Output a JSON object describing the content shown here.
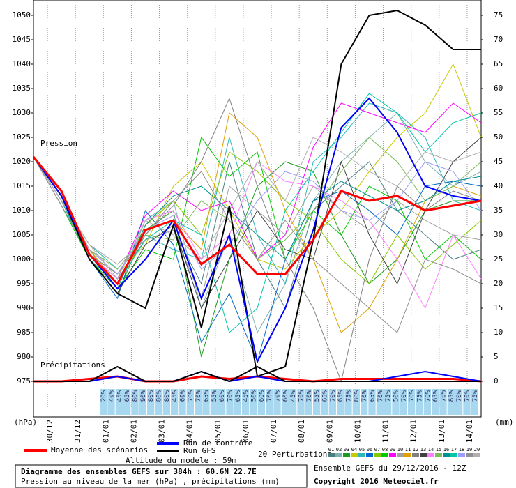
{
  "chart_data": {
    "type": "line",
    "texts": {
      "pressure": "Pression",
      "precip": "Précipitations",
      "unit_left": "(hPa)",
      "unit_right": "(mm)",
      "perturbations": "20 Perturbations",
      "altitude": "Altitude du modele : 59m",
      "title": "Diagramme des ensembles GEFS sur 384h : 60.6N 22.7E",
      "subtitle": "Pression au niveau de la mer (hPa) , précipitations (mm)",
      "run": "Ensemble GEFS du 29/12/2016 - 12Z",
      "copyright": "Copyright 2016 Meteociel.fr"
    },
    "x": [
      0,
      24,
      48,
      72,
      96,
      120,
      144,
      168,
      192,
      216,
      240,
      264,
      288,
      312,
      336,
      360,
      384
    ],
    "xlim": [
      0,
      384
    ],
    "xticks": [
      {
        "value": 12,
        "label": "30/12"
      },
      {
        "value": 36,
        "label": "31/12"
      },
      {
        "value": 60,
        "label": "01/01"
      },
      {
        "value": 84,
        "label": "02/01"
      },
      {
        "value": 108,
        "label": "03/01"
      },
      {
        "value": 132,
        "label": "04/01"
      },
      {
        "value": 156,
        "label": "05/01"
      },
      {
        "value": 180,
        "label": "06/01"
      },
      {
        "value": 204,
        "label": "07/01"
      },
      {
        "value": 228,
        "label": "08/01"
      },
      {
        "value": 252,
        "label": "09/01"
      },
      {
        "value": 276,
        "label": "10/01"
      },
      {
        "value": 300,
        "label": "11/01"
      },
      {
        "value": 324,
        "label": "12/01"
      },
      {
        "value": 348,
        "label": "13/01"
      },
      {
        "value": 372,
        "label": "14/01"
      }
    ],
    "ylim": [
      975,
      1053
    ],
    "yticks": [
      975,
      980,
      985,
      990,
      995,
      1000,
      1005,
      1010,
      1015,
      1020,
      1025,
      1030,
      1035,
      1040,
      1045,
      1050
    ],
    "y2lim": [
      0,
      78
    ],
    "y2ticks": [
      0,
      5,
      10,
      15,
      20,
      25,
      30,
      35,
      40,
      45,
      50,
      55,
      60,
      65,
      70,
      75
    ],
    "grid": true,
    "main_series": [
      {
        "name": "Moyenne des scénarios",
        "color": "#ff0000",
        "values": [
          1021,
          1014,
          1001,
          995,
          1006,
          1008,
          999,
          1003,
          997,
          997,
          1004,
          1014,
          1012,
          1013,
          1010,
          1011,
          1012
        ],
        "precip": [
          0,
          0,
          0.5,
          1,
          0,
          0,
          1,
          0.5,
          1,
          0.5,
          0,
          0.5,
          0.5,
          0.5,
          0.5,
          0.5,
          0
        ]
      },
      {
        "name": "Run de contrôle",
        "color": "#0000ff",
        "values": [
          1021,
          1013,
          1001,
          994,
          1000,
          1008,
          992,
          1005,
          979,
          990,
          1006,
          1027,
          1033,
          1026,
          1015,
          1013,
          1012
        ],
        "precip": [
          0,
          0,
          0,
          1,
          0,
          0,
          2,
          0,
          1,
          0,
          0,
          0,
          0,
          1,
          2,
          1,
          0
        ]
      },
      {
        "name": "Run GFS",
        "color": "#000000",
        "values": [
          1021,
          1013,
          1000,
          993,
          990,
          1007,
          986,
          1011,
          976,
          978,
          1004,
          1040,
          1050,
          1051,
          1048,
          1043,
          1043
        ],
        "precip": [
          0,
          0,
          0,
          3,
          0,
          0,
          2,
          0,
          3,
          0,
          0,
          0,
          0,
          0,
          0,
          0,
          0
        ]
      }
    ],
    "series": [
      {
        "name": "01",
        "color": "#4a8080",
        "values": [
          1021,
          1012,
          1001,
          996,
          1004,
          1006,
          995,
          1020,
          1000,
          990,
          1010,
          1015,
          1020,
          1010,
          1005,
          1000,
          1002
        ]
      },
      {
        "name": "02",
        "color": "#80b0b0",
        "values": [
          1021,
          1013,
          1002,
          994,
          1008,
          1012,
          990,
          1005,
          985,
          995,
          1012,
          1020,
          1025,
          1030,
          1020,
          1015,
          1018
        ]
      },
      {
        "name": "03",
        "color": "#1c9c1c",
        "values": [
          1021,
          1012,
          1000,
          993,
          1006,
          1010,
          980,
          1000,
          1015,
          1020,
          1018,
          1005,
          995,
          1000,
          1010,
          1012,
          1012
        ]
      },
      {
        "name": "04",
        "color": "#c8c800",
        "values": [
          1021,
          1011,
          1001,
          997,
          1003,
          1015,
          1020,
          1010,
          1000,
          998,
          1005,
          1010,
          1018,
          1025,
          1030,
          1040,
          1025
        ]
      },
      {
        "name": "05",
        "color": "#2cb8b8",
        "values": [
          1021,
          1012,
          1003,
          998,
          1005,
          1002,
          1000,
          1025,
          1005,
          995,
          1020,
          1025,
          1032,
          1030,
          1025,
          1012,
          1010
        ]
      },
      {
        "name": "06",
        "color": "#0068c8",
        "values": [
          1021,
          1013,
          1000,
          992,
          1010,
          1003,
          983,
          993,
          979,
          1000,
          1012,
          1014,
          1010,
          1005,
          1015,
          1016,
          1015
        ]
      },
      {
        "name": "07",
        "color": "#84c800",
        "values": [
          1021,
          1012,
          1002,
          995,
          1007,
          1012,
          1005,
          1022,
          1018,
          1012,
          1008,
          1000,
          995,
          1005,
          998,
          1003,
          1008
        ]
      },
      {
        "name": "08",
        "color": "#00c800",
        "values": [
          1021,
          1011,
          1000,
          994,
          1002,
          1000,
          1025,
          1017,
          1022,
          1000,
          1010,
          1005,
          1015,
          1012,
          1000,
          1005,
          1000
        ]
      },
      {
        "name": "09",
        "color": "#ff00ff",
        "values": [
          1021,
          1012,
          1001,
          996,
          1009,
          1014,
          1010,
          1012,
          1000,
          1005,
          1023,
          1032,
          1030,
          1028,
          1026,
          1032,
          1028
        ]
      },
      {
        "name": "10",
        "color": "#a0a0a0",
        "values": [
          1021,
          1012,
          1003,
          999,
          1004,
          1006,
          992,
          1015,
          1010,
          1005,
          1015,
          1010,
          1006,
          1012,
          1008,
          1005,
          1004
        ]
      },
      {
        "name": "11",
        "color": "#e0a000",
        "values": [
          1021,
          1013,
          1002,
          995,
          1006,
          1008,
          1002,
          1030,
          1025,
          1010,
          1000,
          985,
          990,
          1000,
          1012,
          1015,
          1013
        ]
      },
      {
        "name": "12",
        "color": "#808080",
        "values": [
          1021,
          1012,
          1001,
          997,
          1005,
          1011,
          1020,
          1033,
          1015,
          1000,
          990,
          975,
          1000,
          1015,
          1010,
          1014,
          1012
        ]
      },
      {
        "name": "13",
        "color": "#404040",
        "values": [
          1021,
          1012,
          1000,
          993,
          1003,
          1007,
          990,
          1000,
          1010,
          1002,
          1000,
          1020,
          1005,
          995,
          1010,
          1020,
          1025
        ]
      },
      {
        "name": "14",
        "color": "#ff80ff",
        "values": [
          1021,
          1011,
          1001,
          996,
          1008,
          1010,
          1000,
          1005,
          1020,
          1016,
          1015,
          1012,
          1008,
          1000,
          990,
          1005,
          996
        ]
      },
      {
        "name": "15",
        "color": "#7cbc5c",
        "values": [
          1021,
          1012,
          1002,
          998,
          1005,
          1004,
          1012,
          1008,
          1000,
          1004,
          1010,
          1018,
          1025,
          1020,
          1012,
          1015,
          1020
        ]
      },
      {
        "name": "16",
        "color": "#009090",
        "values": [
          1021,
          1013,
          1001,
          994,
          1007,
          1013,
          1015,
          1010,
          1005,
          1000,
          1012,
          1016,
          1013,
          1010,
          1012,
          1016,
          1017
        ]
      },
      {
        "name": "17",
        "color": "#00c8a0",
        "values": [
          1021,
          1012,
          1000,
          995,
          1004,
          1008,
          1005,
          985,
          990,
          1010,
          1018,
          1026,
          1034,
          1030,
          1022,
          1028,
          1030
        ]
      },
      {
        "name": "18",
        "color": "#9c9cff",
        "values": [
          1021,
          1012,
          1002,
          997,
          1006,
          1009,
          998,
          1003,
          1012,
          1018,
          1016,
          1010,
          1008,
          1012,
          1020,
          1018,
          1010
        ]
      },
      {
        "name": "19",
        "color": "#909090",
        "values": [
          1021,
          1011,
          1001,
          995,
          1005,
          1012,
          1018,
          1008,
          1000,
          1008,
          1000,
          995,
          990,
          985,
          1000,
          998,
          995
        ]
      },
      {
        "name": "20",
        "color": "#b0b0b0",
        "values": [
          1021,
          1012,
          1003,
          996,
          1008,
          1005,
          1000,
          1010,
          1020,
          1012,
          1025,
          1022,
          1018,
          1015,
          1022,
          1020,
          1022
        ]
      }
    ],
    "probabilities": {
      "values": [
        20,
        40,
        45,
        65,
        80,
        90,
        80,
        80,
        80,
        45,
        60,
        70,
        70,
        65,
        55,
        60,
        70,
        65,
        45,
        50,
        60,
        70,
        70,
        60,
        45,
        70,
        70,
        55,
        65,
        70,
        65,
        75,
        80,
        70,
        65,
        70,
        75,
        50,
        70,
        70,
        75,
        70,
        65,
        70,
        85,
        70,
        70,
        75
      ],
      "value_labels": [
        "20%",
        "40%",
        "45%",
        "65%",
        "80%",
        "90%",
        "80%",
        "80%",
        "80%",
        "45%",
        "60%",
        "70%",
        "70%",
        "65%",
        "55%",
        "60%",
        "70%",
        "65%",
        "45%",
        "50%",
        "60%",
        "70%",
        "70%",
        "60%",
        "45%",
        "70%",
        "70%",
        "55%",
        "65%",
        "70%",
        "65%",
        "75%",
        "80%",
        "70%",
        "65%",
        "70%",
        "75%",
        "50%",
        "70%",
        "70%",
        "75%",
        "70%",
        "65%",
        "70%",
        "85%",
        "70%",
        "70%",
        "75%"
      ]
    }
  }
}
